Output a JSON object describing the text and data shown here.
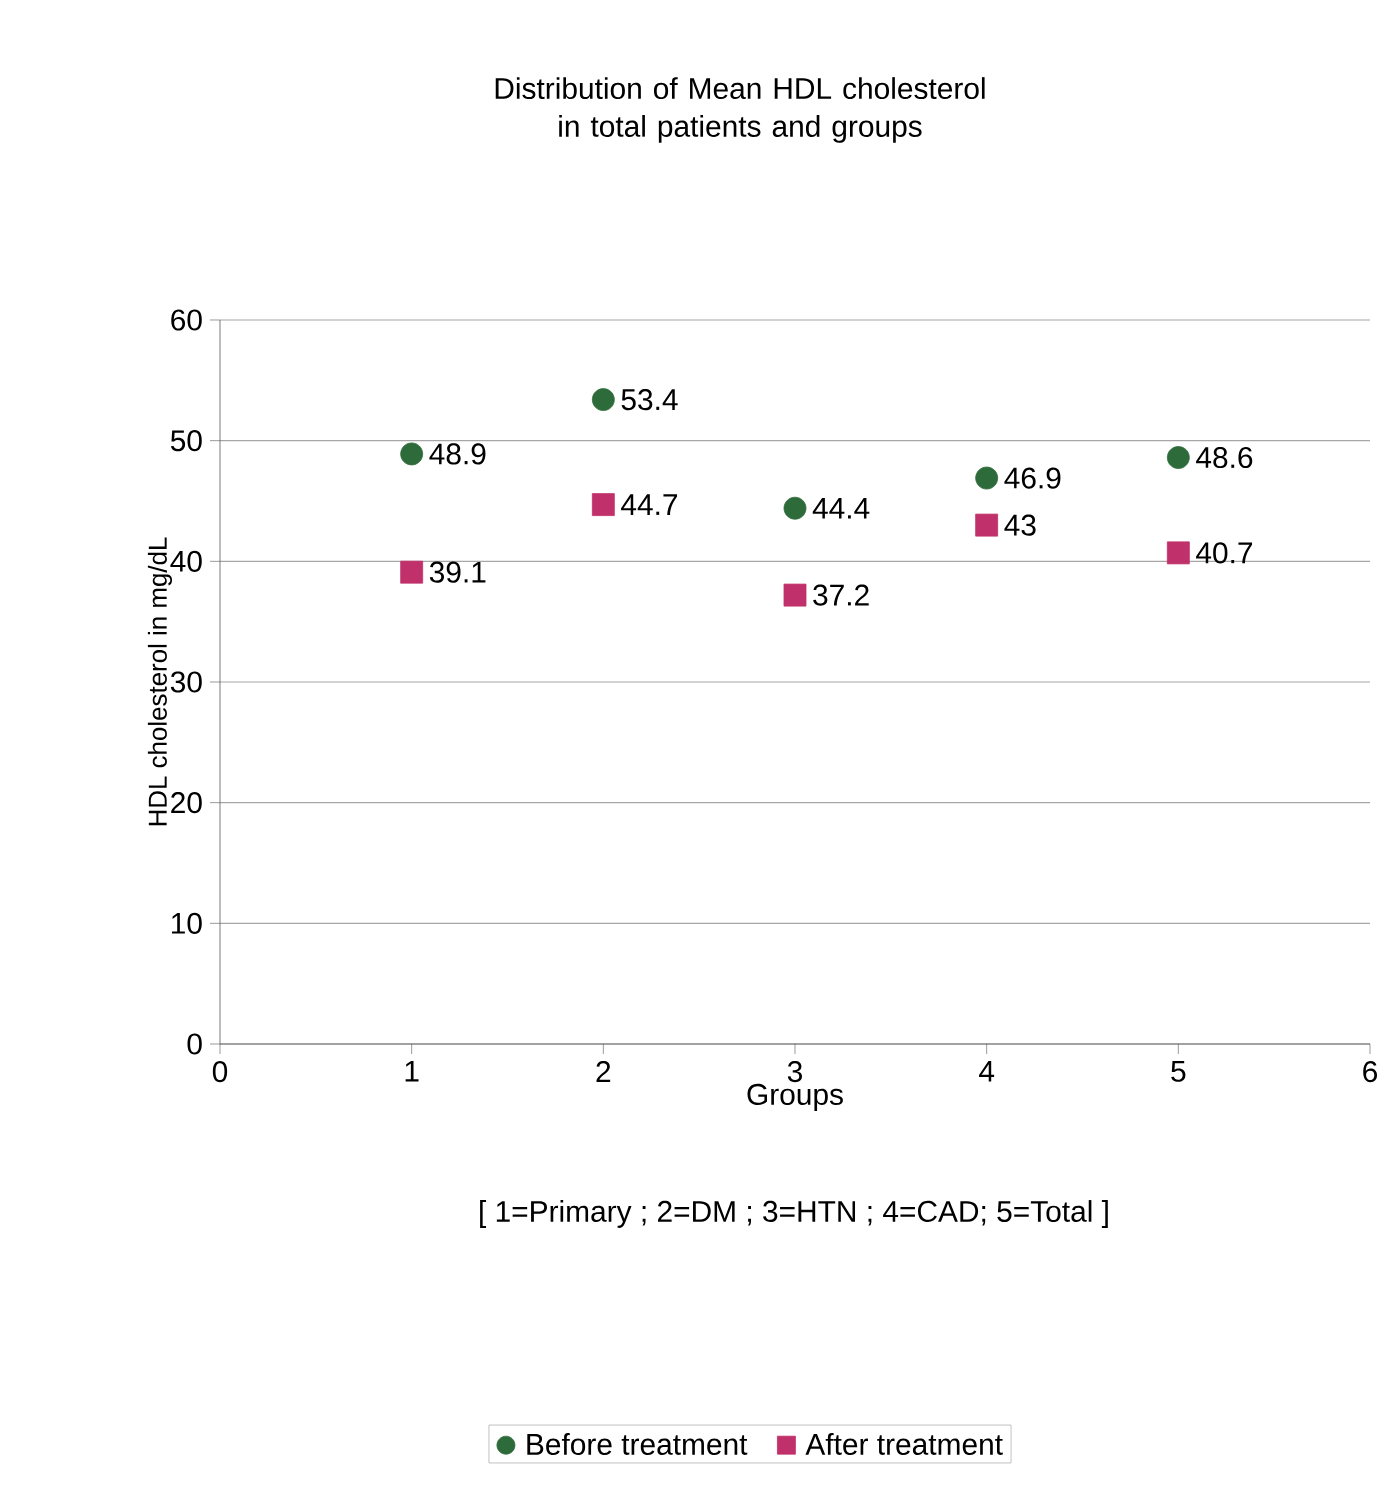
{
  "chart_data": {
    "type": "scatter",
    "title": "Distribution of Mean HDL cholesterol in total patients and groups",
    "xlabel": "Groups",
    "ylabel": "HDL cholesterol in mg/dL",
    "annotations": [
      "[ 1=Primary ; 2=DM ; 3=HTN ; 4=CAD; 5=Total ]"
    ],
    "x": [
      1,
      2,
      3,
      4,
      5
    ],
    "series": [
      {
        "name": "Before treatment",
        "color": "#2e6b3a",
        "marker": "circle",
        "values": [
          48.9,
          53.4,
          44.4,
          46.9,
          48.6
        ]
      },
      {
        "name": "After treatment",
        "color": "#c0306a",
        "marker": "square",
        "values": [
          39.1,
          44.7,
          37.2,
          43,
          40.7
        ]
      }
    ],
    "xlim": [
      0,
      6
    ],
    "xticks": [
      0,
      1,
      2,
      3,
      4,
      5,
      6
    ],
    "ylim": [
      0,
      60
    ],
    "yticks": [
      0,
      10,
      20,
      30,
      40,
      50,
      60
    ],
    "grid": "y",
    "legend": "bottom",
    "data_labels": true
  }
}
